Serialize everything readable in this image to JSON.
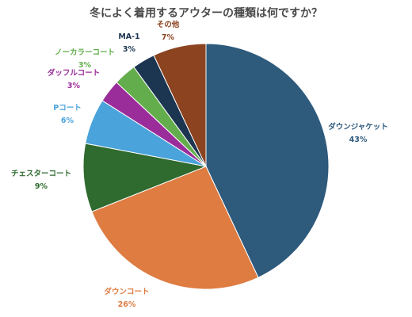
{
  "chart_data": {
    "type": "pie",
    "title": "冬によく着用するアウターの種類は何ですか？",
    "start": "12 o'clock, clockwise",
    "slices": [
      {
        "name": "ダウンジャケット",
        "value": 43,
        "value_label": "43%",
        "color": "#2e5a7c"
      },
      {
        "name": "ダウンコート",
        "value": 26,
        "value_label": "26%",
        "color": "#de7c42"
      },
      {
        "name": "チェスターコート",
        "value": 9,
        "value_label": "9%",
        "color": "#2f6a2f"
      },
      {
        "name": "Pコート",
        "value": 6,
        "value_label": "6%",
        "color": "#4aa3db"
      },
      {
        "name": "ダッフルコート",
        "value": 3,
        "value_label": "3%",
        "color": "#9a2d9a"
      },
      {
        "name": "ノーカラーコート",
        "value": 3,
        "value_label": "3%",
        "color": "#63ad4c"
      },
      {
        "name": "MA-1",
        "value": 3,
        "value_label": "3%",
        "color": "#1c3550"
      },
      {
        "name": "その他",
        "value": 7,
        "value_label": "7%",
        "color": "#8b4320"
      }
    ]
  }
}
